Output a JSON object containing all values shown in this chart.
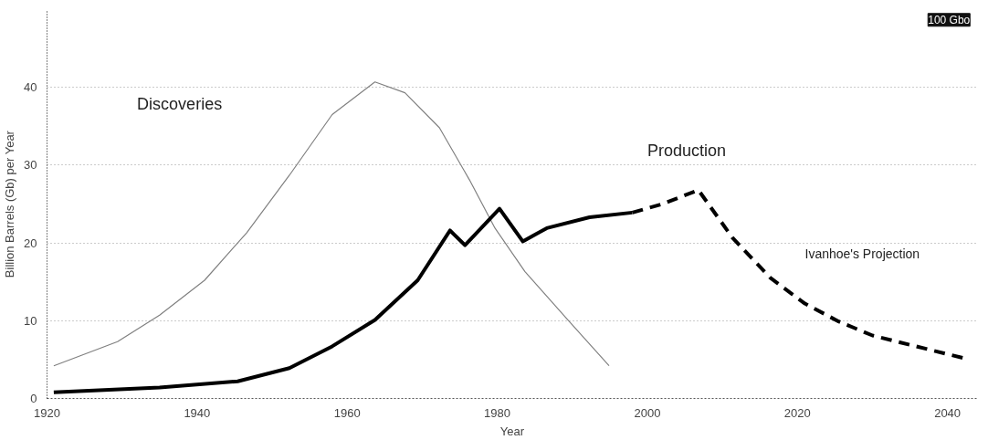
{
  "chart_data": {
    "type": "line",
    "xlabel": "Year",
    "ylabel": "Billion Barrels (Gb) per Year",
    "xlim": [
      1920,
      2044
    ],
    "xticks": [
      1920,
      1940,
      1960,
      1980,
      2000,
      2020,
      2040
    ],
    "ylim": [
      0,
      50
    ],
    "yticks": [
      0,
      10,
      20,
      30,
      40
    ],
    "grid": "y",
    "series": [
      {
        "color": "#808080",
        "line_style": "solid",
        "x": [
          1920.9,
          1929.4,
          1935,
          1941,
          1946.6,
          1952.3,
          1958,
          1963.7,
          1967.7,
          1972.3,
          1976.3,
          1979.7,
          1983.7,
          1989.4,
          1994.9
        ],
        "values": [
          4.2,
          7.3,
          10.7,
          15.2,
          21.3,
          28.7,
          36.5,
          40.7,
          39.3,
          34.8,
          28.1,
          21.9,
          16.3,
          10.1,
          4.2
        ]
      },
      {
        "color": "#000000",
        "line_style": "solid",
        "x": [
          1920.9,
          1935,
          1945.4,
          1952.3,
          1958,
          1963.7,
          1969.4,
          1973.7,
          1975.7,
          1980.3,
          1983.4,
          1986.6,
          1992.3,
          1998
        ],
        "values": [
          0.8,
          1.4,
          2.2,
          3.9,
          6.7,
          10.1,
          15.2,
          21.6,
          19.7,
          24.4,
          20.2,
          21.9,
          23.3,
          23.9
        ]
      },
      {
        "color": "#000000",
        "line_style": "dashed",
        "x": [
          1998,
          2002,
          2006.8,
          2011.4,
          2016.4,
          2021,
          2025.5,
          2030,
          2035.4,
          2042.5
        ],
        "values": [
          23.9,
          25,
          26.8,
          20.6,
          15.5,
          12.2,
          9.9,
          8.1,
          6.8,
          5.1
        ]
      }
    ],
    "annotations": [
      "Discoveries",
      "Production",
      "Ivanhoe's Projection",
      "100 Gbo"
    ]
  }
}
